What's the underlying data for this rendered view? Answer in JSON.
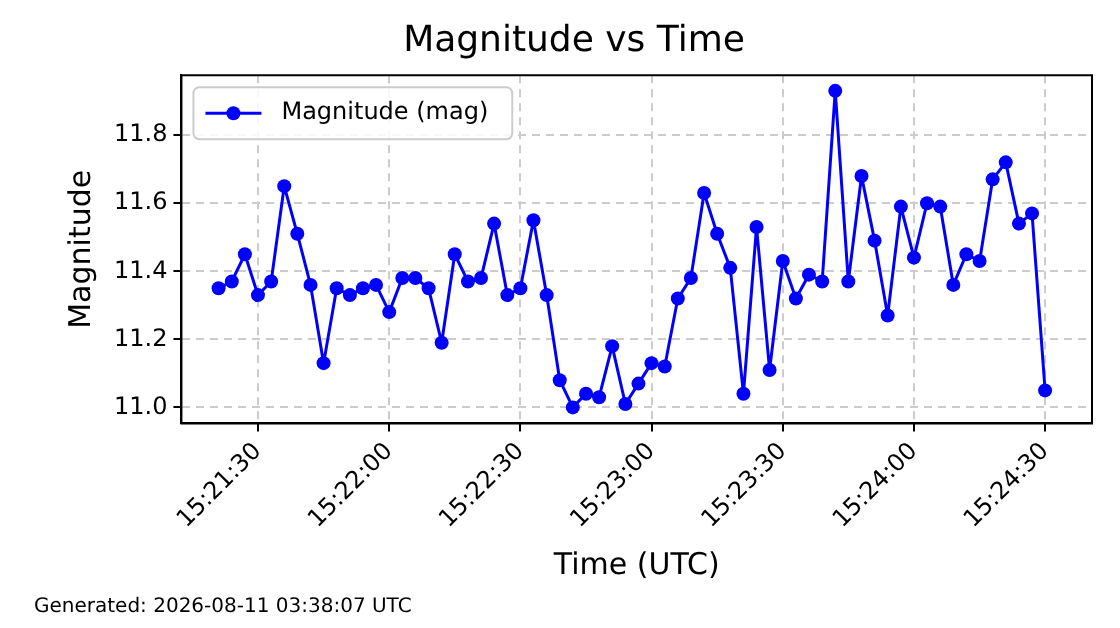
{
  "chart_data": {
    "type": "line",
    "title": "Magnitude vs Time",
    "xlabel": "Time (UTC)",
    "ylabel": "Magnitude",
    "annotations": [
      "Generated: 2026-08-11 03:38:07 UTC"
    ],
    "x": [
      15.35583,
      15.35667,
      15.3575,
      15.35833,
      15.35917,
      15.36,
      15.36083,
      15.36167,
      15.3625,
      15.36333,
      15.36417,
      15.365,
      15.36583,
      15.36667,
      15.3675,
      15.36833,
      15.36917,
      15.37,
      15.37083,
      15.37167,
      15.3725,
      15.37333,
      15.37417,
      15.375,
      15.37583,
      15.37667,
      15.3775,
      15.37833,
      15.37917,
      15.38,
      15.38083,
      15.38167,
      15.3825,
      15.38333,
      15.38417,
      15.385,
      15.38583,
      15.38667,
      15.3875,
      15.38833,
      15.38917,
      15.39,
      15.39083,
      15.39167,
      15.3925,
      15.39333,
      15.39417,
      15.395,
      15.39583,
      15.39667,
      15.3975,
      15.39833,
      15.39917,
      15.4,
      15.40083,
      15.40167,
      15.4025,
      15.40333,
      15.40417,
      15.405,
      15.40583,
      15.40667,
      15.4075,
      15.40833
    ],
    "series": [
      {
        "name": "Magnitude (mag)",
        "color": "#0000ff",
        "values": [
          11.35,
          11.37,
          11.45,
          11.33,
          11.37,
          11.65,
          11.51,
          11.36,
          11.13,
          11.35,
          11.33,
          11.35,
          11.36,
          11.28,
          11.38,
          11.38,
          11.35,
          11.19,
          11.45,
          11.37,
          11.38,
          11.54,
          11.33,
          11.35,
          11.55,
          11.33,
          11.08,
          11.0,
          11.04,
          11.03,
          11.18,
          11.01,
          11.07,
          11.13,
          11.12,
          11.32,
          11.38,
          11.63,
          11.51,
          11.41,
          11.04,
          11.53,
          11.11,
          11.43,
          11.32,
          11.39,
          11.37,
          11.93,
          11.37,
          11.68,
          11.49,
          11.27,
          11.59,
          11.44,
          11.6,
          11.59,
          11.36,
          11.45,
          11.43,
          11.67,
          11.72,
          11.54,
          11.57,
          11.05
        ]
      }
    ],
    "xlim": [
      15.35347,
      15.41131
    ],
    "xticks": [
      {
        "value": 15.35833,
        "label": "15:21:30"
      },
      {
        "value": 15.36667,
        "label": "15:22:00"
      },
      {
        "value": 15.375,
        "label": "15:22:30"
      },
      {
        "value": 15.38333,
        "label": "15:23:00"
      },
      {
        "value": 15.39167,
        "label": "15:23:30"
      },
      {
        "value": 15.4,
        "label": "15:24:00"
      },
      {
        "value": 15.40833,
        "label": "15:24:30"
      }
    ],
    "ylim": [
      10.953,
      11.976
    ],
    "yticks": [
      {
        "value": 11.0,
        "label": "11.0"
      },
      {
        "value": 11.2,
        "label": "11.2"
      },
      {
        "value": 11.4,
        "label": "11.4"
      },
      {
        "value": 11.6,
        "label": "11.6"
      },
      {
        "value": 11.8,
        "label": "11.8"
      }
    ],
    "grid": true,
    "legend": "top left",
    "marker": "circle",
    "line_style": "solid"
  }
}
